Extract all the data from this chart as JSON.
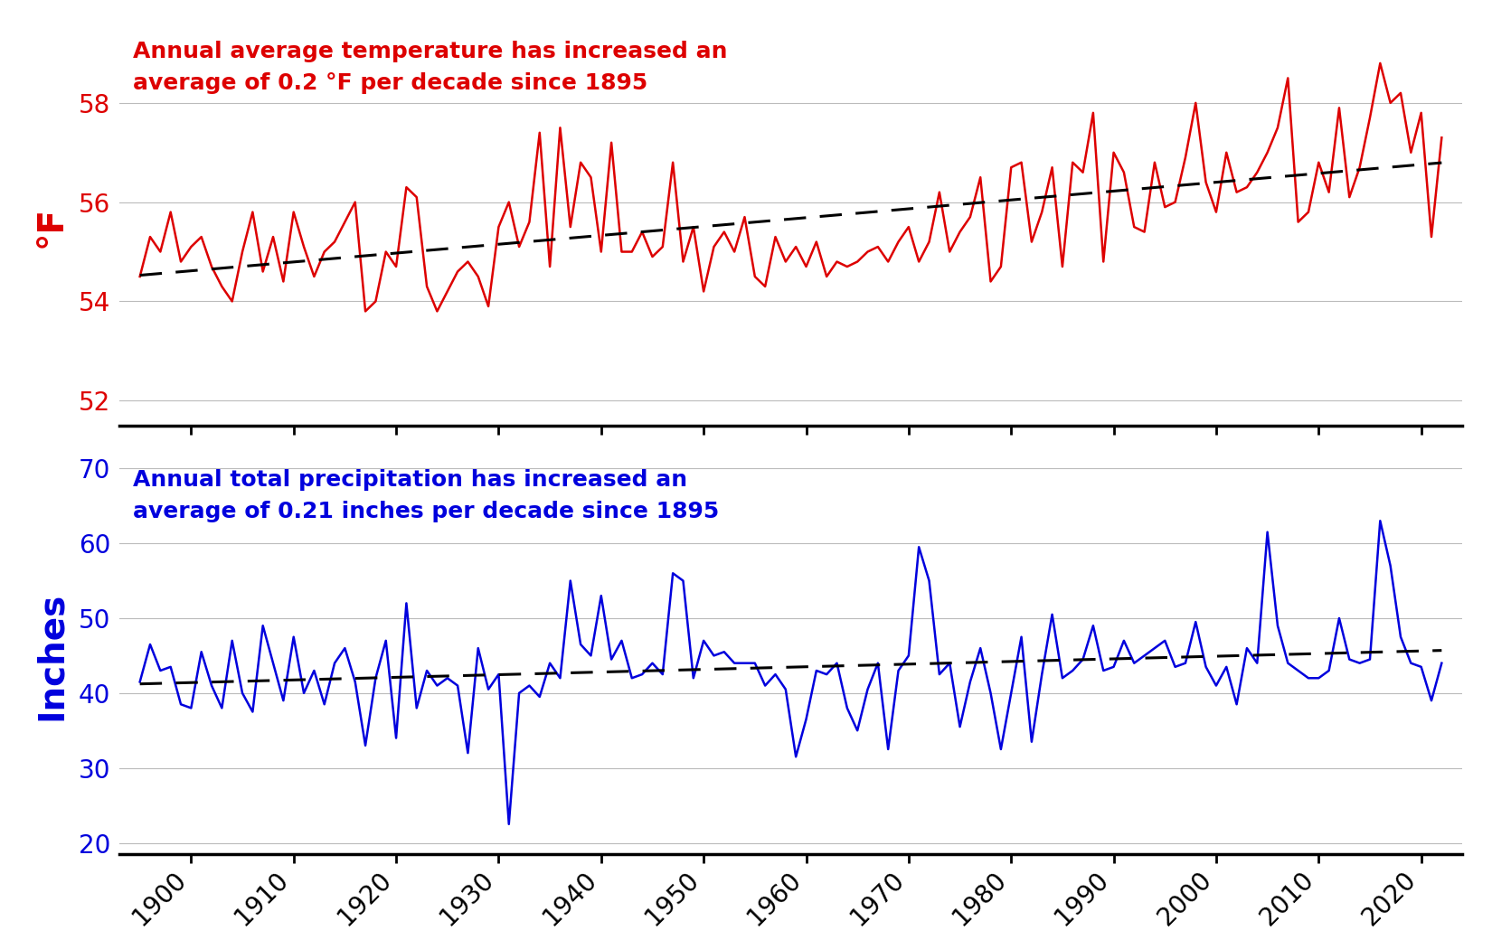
{
  "years": [
    1895,
    1896,
    1897,
    1898,
    1899,
    1900,
    1901,
    1902,
    1903,
    1904,
    1905,
    1906,
    1907,
    1908,
    1909,
    1910,
    1911,
    1912,
    1913,
    1914,
    1915,
    1916,
    1917,
    1918,
    1919,
    1920,
    1921,
    1922,
    1923,
    1924,
    1925,
    1926,
    1927,
    1928,
    1929,
    1930,
    1931,
    1932,
    1933,
    1934,
    1935,
    1936,
    1937,
    1938,
    1939,
    1940,
    1941,
    1942,
    1943,
    1944,
    1945,
    1946,
    1947,
    1948,
    1949,
    1950,
    1951,
    1952,
    1953,
    1954,
    1955,
    1956,
    1957,
    1958,
    1959,
    1960,
    1961,
    1962,
    1963,
    1964,
    1965,
    1966,
    1967,
    1968,
    1969,
    1970,
    1971,
    1972,
    1973,
    1974,
    1975,
    1976,
    1977,
    1978,
    1979,
    1980,
    1981,
    1982,
    1983,
    1984,
    1985,
    1986,
    1987,
    1988,
    1989,
    1990,
    1991,
    1992,
    1993,
    1994,
    1995,
    1996,
    1997,
    1998,
    1999,
    2000,
    2001,
    2002,
    2003,
    2004,
    2005,
    2006,
    2007,
    2008,
    2009,
    2010,
    2011,
    2012,
    2013,
    2014,
    2015,
    2016,
    2017,
    2018,
    2019,
    2020,
    2021,
    2022
  ],
  "temperature": [
    54.5,
    55.3,
    55.0,
    55.8,
    54.8,
    55.1,
    55.3,
    54.7,
    54.3,
    54.0,
    55.0,
    55.8,
    54.6,
    55.3,
    54.4,
    55.8,
    55.1,
    54.5,
    55.0,
    55.2,
    55.6,
    56.0,
    53.8,
    54.0,
    55.0,
    54.7,
    56.3,
    56.1,
    54.3,
    53.8,
    54.2,
    54.6,
    54.8,
    54.5,
    53.9,
    55.5,
    56.0,
    55.1,
    55.6,
    57.4,
    54.7,
    57.5,
    55.5,
    56.8,
    56.5,
    55.0,
    57.2,
    55.0,
    55.0,
    55.4,
    54.9,
    55.1,
    56.8,
    54.8,
    55.5,
    54.2,
    55.1,
    55.4,
    55.0,
    55.7,
    54.5,
    54.3,
    55.3,
    54.8,
    55.1,
    54.7,
    55.2,
    54.5,
    54.8,
    54.7,
    54.8,
    55.0,
    55.1,
    54.8,
    55.2,
    55.5,
    54.8,
    55.2,
    56.2,
    55.0,
    55.4,
    55.7,
    56.5,
    54.4,
    54.7,
    56.7,
    56.8,
    55.2,
    55.8,
    56.7,
    54.7,
    56.8,
    56.6,
    57.8,
    54.8,
    57.0,
    56.6,
    55.5,
    55.4,
    56.8,
    55.9,
    56.0,
    56.9,
    58.0,
    56.4,
    55.8,
    57.0,
    56.2,
    56.3,
    56.6,
    57.0,
    57.5,
    58.5,
    55.6,
    55.8,
    56.8,
    56.2,
    57.9,
    56.1,
    56.7,
    57.7,
    58.8,
    58.0,
    58.2,
    57.0,
    57.8,
    55.3,
    57.3
  ],
  "precipitation": [
    41.5,
    46.5,
    43.0,
    43.5,
    38.5,
    38.0,
    45.5,
    41.0,
    38.0,
    47.0,
    40.0,
    37.5,
    49.0,
    44.0,
    39.0,
    47.5,
    40.0,
    43.0,
    38.5,
    44.0,
    46.0,
    41.5,
    33.0,
    42.0,
    47.0,
    34.0,
    52.0,
    38.0,
    43.0,
    41.0,
    42.0,
    41.0,
    32.0,
    46.0,
    40.5,
    42.5,
    22.5,
    40.0,
    41.0,
    39.5,
    44.0,
    42.0,
    55.0,
    46.5,
    45.0,
    53.0,
    44.5,
    47.0,
    42.0,
    42.5,
    44.0,
    42.5,
    56.0,
    55.0,
    42.0,
    47.0,
    45.0,
    45.5,
    44.0,
    44.0,
    44.0,
    41.0,
    42.5,
    40.5,
    31.5,
    36.5,
    43.0,
    42.5,
    44.0,
    38.0,
    35.0,
    40.5,
    44.0,
    32.5,
    43.0,
    45.0,
    59.5,
    55.0,
    42.5,
    44.0,
    35.5,
    41.5,
    46.0,
    40.0,
    32.5,
    40.0,
    47.5,
    33.5,
    42.5,
    50.5,
    42.0,
    43.0,
    44.5,
    49.0,
    43.0,
    43.5,
    47.0,
    44.0,
    45.0,
    46.0,
    47.0,
    43.5,
    44.0,
    49.5,
    43.5,
    41.0,
    43.5,
    38.5,
    46.0,
    44.0,
    61.5,
    49.0,
    44.0,
    43.0,
    42.0,
    42.0,
    43.0,
    50.0,
    44.5,
    44.0,
    44.5,
    63.0,
    57.0,
    47.5,
    44.0,
    43.5,
    39.0,
    44.0
  ],
  "temp_color": "#dd0000",
  "precip_color": "#0000dd",
  "trend_color": "#000000",
  "annotation_temp": "Annual average temperature has increased an\naverage of 0.2 °F per decade since 1895",
  "annotation_precip": "Annual total precipitation has increased an\naverage of 0.21 inches per decade since 1895",
  "ylabel_temp": "°F",
  "ylabel_precip": "Inches",
  "temp_ylim": [
    51.5,
    59.5
  ],
  "temp_yticks": [
    52,
    54,
    56,
    58
  ],
  "precip_ylim": [
    18.5,
    71.5
  ],
  "precip_yticks": [
    20,
    30,
    40,
    50,
    60,
    70
  ],
  "xlim_start": 1893,
  "xlim_end": 2024,
  "xticks": [
    1900,
    1910,
    1920,
    1930,
    1940,
    1950,
    1960,
    1970,
    1980,
    1990,
    2000,
    2010,
    2020
  ],
  "line_width": 1.8,
  "trend_lw": 2.2,
  "grid_color": "#bbbbbb",
  "background_color": "#ffffff",
  "annotation_fontsize": 18,
  "ylabel_fontsize": 28,
  "tick_fontsize": 20
}
